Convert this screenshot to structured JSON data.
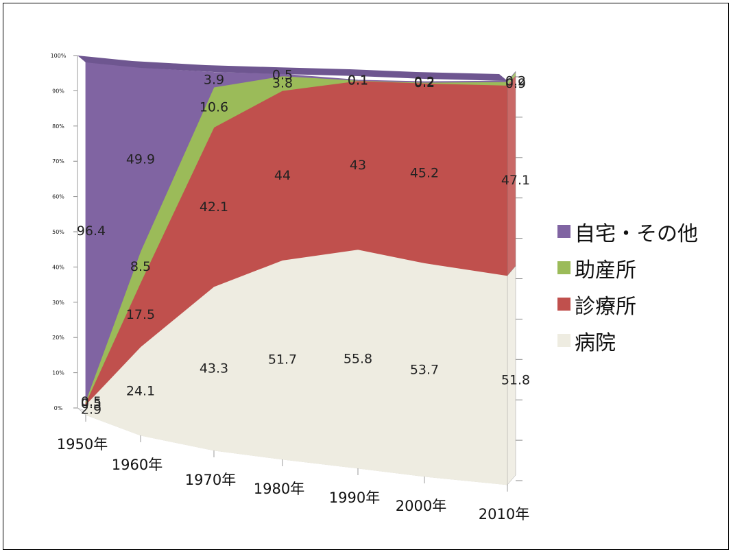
{
  "chart_data": {
    "type": "area",
    "stacking": "percent",
    "three_d": true,
    "x": [
      "1950年",
      "1960年",
      "1970年",
      "1980年",
      "1990年",
      "2000年",
      "2010年"
    ],
    "y_ticks": [
      "0%",
      "10%",
      "20%",
      "30%",
      "40%",
      "50%",
      "60%",
      "70%",
      "80%",
      "90%",
      "100%"
    ],
    "ylim": [
      0,
      100
    ],
    "legend_position": "right",
    "series": [
      {
        "name": "病院",
        "color": "#eeece1",
        "values": [
          2.9,
          24.1,
          43.3,
          51.7,
          55.8,
          53.7,
          51.8
        ]
      },
      {
        "name": "診療所",
        "color": "#c0504d",
        "values": [
          0.5,
          17.5,
          42.1,
          44,
          43,
          45.2,
          47.1
        ]
      },
      {
        "name": "助産所",
        "color": "#9bbb59",
        "values": [
          0.5,
          8.5,
          10.6,
          3.8,
          0.1,
          0.2,
          0.9
        ]
      },
      {
        "name": "自宅・その他",
        "color": "#8064a2",
        "values": [
          96.4,
          49.9,
          3.9,
          0.5,
          0.1,
          0.2,
          0.2
        ]
      }
    ],
    "legend": [
      {
        "name": "自宅・その他",
        "color": "#8064a2"
      },
      {
        "name": "助産所",
        "color": "#9bbb59"
      },
      {
        "name": "診療所",
        "color": "#c0504d"
      },
      {
        "name": "病院",
        "color": "#eeece1"
      }
    ]
  }
}
